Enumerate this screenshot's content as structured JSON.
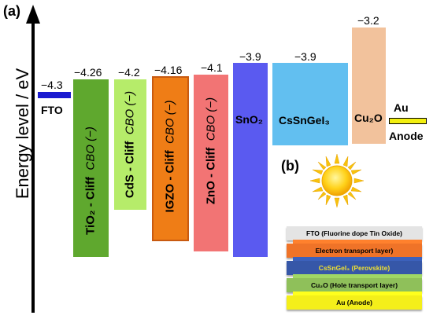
{
  "panel_a": "(a)",
  "panel_b": "(b)",
  "axis_label": "Energy level / eV",
  "fto": {
    "label": "FTO",
    "value": "−4.3",
    "color": "#1b1bd0"
  },
  "au": {
    "label": "Au",
    "anode": "Anode",
    "color": "#f2ef10"
  },
  "cliff_bars": [
    {
      "material": "TiO₂ - Cliff",
      "cbo": "CBO (−)",
      "value": "−4.26",
      "color": "#5fa82e"
    },
    {
      "material": "CdS - Cliff",
      "cbo": "CBO (−)",
      "value": "−4.2",
      "color": "#b6ec6a"
    },
    {
      "material": "IGZO - Cliff",
      "cbo": "CBO (−)",
      "value": "−4.16",
      "color": "#ef7d16"
    },
    {
      "material": "ZnO - Cliff",
      "cbo": "CBO (−)",
      "value": "−4.1",
      "color": "#f27474"
    }
  ],
  "snO2": {
    "label": "SnO₂",
    "value": "−3.9",
    "color": "#5a5af0"
  },
  "perovskite": {
    "label": "CsSnGeI₃",
    "value": "−3.9",
    "color": "#62bff0"
  },
  "cu2o": {
    "label": "Cu₂O",
    "value": "−3.2",
    "color": "#f2c29c"
  },
  "layers": [
    {
      "text": "FTO (Fluorine dope Tin Oxide)",
      "color": "#e4e4e4",
      "text_color": "#000000"
    },
    {
      "text": "Electron transport layer)",
      "color": "#ef7328",
      "text_color": "#000000"
    },
    {
      "text": "CsSnGeI₃ (Perovskite)",
      "color": "#3657a8",
      "text_color": "#f0e030"
    },
    {
      "text": "Cu₂O (Hole transport layer)",
      "color": "#8fc05a",
      "text_color": "#000000"
    },
    {
      "text": "Au (Anode)",
      "color": "#f4ef1a",
      "text_color": "#000000"
    }
  ]
}
